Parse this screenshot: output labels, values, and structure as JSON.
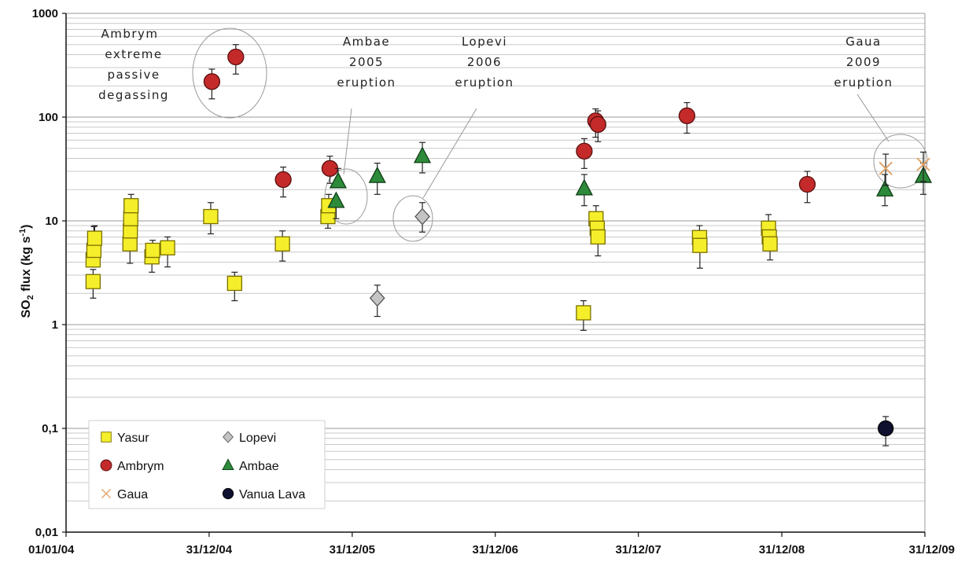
{
  "chart_data": {
    "type": "scatter",
    "yscale": "log",
    "ylim": [
      0.01,
      1000
    ],
    "xlim": [
      "01/01/04",
      "31/12/09"
    ],
    "ylabel": "SO2 flux (kg s-1)",
    "ylabel_parts": {
      "main": "SO",
      "sub": "2",
      "rest": " flux (kg s",
      "sup": "-1",
      "end": ")"
    },
    "grid": "horizontal",
    "legend_position": "bottom-left",
    "x_ticks": [
      {
        "date": "2004-01-01",
        "label": "01/01/04"
      },
      {
        "date": "2004-12-31",
        "label": "31/12/04"
      },
      {
        "date": "2005-12-31",
        "label": "31/12/05"
      },
      {
        "date": "2006-12-31",
        "label": "31/12/06"
      },
      {
        "date": "2007-12-31",
        "label": "31/12/07"
      },
      {
        "date": "2008-12-31",
        "label": "31/12/08"
      },
      {
        "date": "2009-12-31",
        "label": "31/12/09"
      }
    ],
    "y_ticks": [
      {
        "value": 0.01,
        "label": "0,01"
      },
      {
        "value": 0.1,
        "label": "0,1"
      },
      {
        "value": 1,
        "label": "1"
      },
      {
        "value": 10,
        "label": "10"
      },
      {
        "value": 100,
        "label": "100"
      },
      {
        "value": 1000,
        "label": "1000"
      }
    ],
    "series": [
      {
        "name": "Yasur",
        "marker": "square",
        "color": "#f5ee2a",
        "stroke": "#7a7000",
        "points": [
          {
            "date": "2004-03-10",
            "y": 2.6,
            "lo": 1.8,
            "hi": 3.4
          },
          {
            "date": "2004-03-10",
            "y": 4.2
          },
          {
            "date": "2004-03-12",
            "y": 5.2,
            "lo": 3.6,
            "hi": 8.8
          },
          {
            "date": "2004-03-14",
            "y": 6.8,
            "hi": 9.0
          },
          {
            "date": "2004-06-12",
            "y": 6.0,
            "lo": 3.9
          },
          {
            "date": "2004-06-13",
            "y": 8.0
          },
          {
            "date": "2004-06-14",
            "y": 10.5
          },
          {
            "date": "2004-06-15",
            "y": 14.0,
            "hi": 18.0
          },
          {
            "date": "2004-08-07",
            "y": 4.5,
            "lo": 3.2
          },
          {
            "date": "2004-08-09",
            "y": 5.2,
            "hi": 6.5
          },
          {
            "date": "2004-09-16",
            "y": 5.5,
            "lo": 3.6,
            "hi": 7.0
          },
          {
            "date": "2005-01-04",
            "y": 11.0,
            "lo": 7.5,
            "hi": 15.0
          },
          {
            "date": "2005-03-06",
            "y": 2.5,
            "lo": 1.7,
            "hi": 3.2
          },
          {
            "date": "2005-07-06",
            "y": 6.0,
            "lo": 4.1,
            "hi": 8.0
          },
          {
            "date": "2005-10-30",
            "y": 11.0,
            "lo": 8.5
          },
          {
            "date": "2005-11-01",
            "y": 14.0,
            "hi": 18.0
          },
          {
            "date": "2007-08-13",
            "y": 1.3,
            "lo": 0.88,
            "hi": 1.7
          },
          {
            "date": "2007-09-14",
            "y": 10.5,
            "hi": 14.0
          },
          {
            "date": "2007-09-17",
            "y": 8.5
          },
          {
            "date": "2007-09-19",
            "y": 7.0,
            "lo": 4.6
          },
          {
            "date": "2008-06-04",
            "y": 6.9,
            "hi": 9.0
          },
          {
            "date": "2008-06-05",
            "y": 5.8,
            "lo": 3.5
          },
          {
            "date": "2008-11-27",
            "y": 8.5,
            "hi": 11.5
          },
          {
            "date": "2008-11-29",
            "y": 7.0
          },
          {
            "date": "2008-12-01",
            "y": 6.0,
            "lo": 4.2
          }
        ]
      },
      {
        "name": "Lopevi",
        "marker": "diamond",
        "color": "#c4c4c4",
        "stroke": "#555555",
        "points": [
          {
            "date": "2006-03-05",
            "y": 1.8,
            "lo": 1.2,
            "hi": 2.4
          },
          {
            "date": "2006-06-28",
            "y": 11.0,
            "lo": 7.8,
            "hi": 15.0
          }
        ]
      },
      {
        "name": "Ambrym",
        "marker": "circle",
        "color": "#c42a2a",
        "stroke": "#5a0f0f",
        "points": [
          {
            "date": "2005-01-07",
            "y": 220,
            "lo": 150,
            "hi": 290
          },
          {
            "date": "2005-03-09",
            "y": 380,
            "lo": 260,
            "hi": 500
          },
          {
            "date": "2005-07-08",
            "y": 25,
            "lo": 17,
            "hi": 33
          },
          {
            "date": "2005-11-04",
            "y": 32,
            "lo": 23,
            "hi": 42
          },
          {
            "date": "2007-08-15",
            "y": 47,
            "lo": 32,
            "hi": 62
          },
          {
            "date": "2007-09-13",
            "y": 92,
            "lo": 64,
            "hi": 120
          },
          {
            "date": "2007-09-19",
            "y": 85,
            "lo": 58,
            "hi": 115
          },
          {
            "date": "2008-05-03",
            "y": 103,
            "lo": 70,
            "hi": 138
          },
          {
            "date": "2009-03-06",
            "y": 22.5,
            "lo": 15,
            "hi": 30
          }
        ]
      },
      {
        "name": "Ambae",
        "marker": "triangle",
        "color": "#2d8a3a",
        "stroke": "#0e3d16",
        "points": [
          {
            "date": "2005-11-20",
            "y": 15.5,
            "lo": 10.5
          },
          {
            "date": "2005-11-25",
            "y": 24,
            "hi": 32
          },
          {
            "date": "2006-03-05",
            "y": 27,
            "lo": 18,
            "hi": 36
          },
          {
            "date": "2006-06-28",
            "y": 42,
            "lo": 29,
            "hi": 57
          },
          {
            "date": "2007-08-15",
            "y": 20.5,
            "lo": 14,
            "hi": 28
          },
          {
            "date": "2009-09-20",
            "y": 20,
            "lo": 14,
            "hi": 28
          },
          {
            "date": "2009-12-27",
            "y": 27,
            "lo": 18,
            "hi": 36
          }
        ]
      },
      {
        "name": "Gaua",
        "marker": "x",
        "color": "#e0a46a",
        "stroke": "#e0a46a",
        "points": [
          {
            "date": "2009-09-22",
            "y": 32,
            "lo": 22,
            "hi": 44
          },
          {
            "date": "2009-12-27",
            "y": 35,
            "lo": 24,
            "hi": 46
          }
        ]
      },
      {
        "name": "Vanua Lava",
        "marker": "dot",
        "color": "#0f1030",
        "stroke": "#000000",
        "points": [
          {
            "date": "2009-09-22",
            "y": 0.1,
            "lo": 0.068,
            "hi": 0.13
          }
        ]
      }
    ],
    "annotations": [
      {
        "lines": [
          "Ambrym",
          "extreme",
          "passive",
          "degassing"
        ]
      },
      {
        "lines": [
          "Ambae",
          "2005",
          "eruption"
        ]
      },
      {
        "lines": [
          "Lopevi",
          "2006",
          "eruption"
        ]
      },
      {
        "lines": [
          "Gaua",
          "2009",
          "eruption"
        ]
      }
    ]
  }
}
